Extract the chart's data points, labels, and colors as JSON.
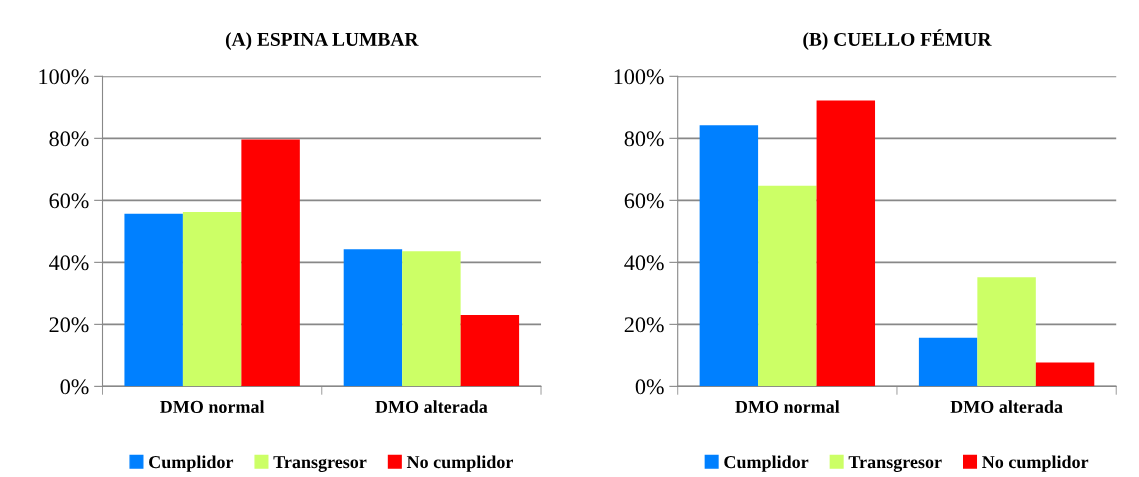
{
  "chart_data": [
    {
      "type": "bar",
      "title": "(A) ESPINA LUMBAR",
      "categories": [
        "DMO normal",
        "DMO alterada"
      ],
      "series": [
        {
          "name": "Cumplidor",
          "color": "#0080ff",
          "values": [
            55.7,
            44.2
          ]
        },
        {
          "name": "Transgresor",
          "color": "#ccff66",
          "values": [
            56.2,
            43.6
          ]
        },
        {
          "name": "No cumplidor",
          "color": "#ff0000",
          "values": [
            79.6,
            23.0
          ]
        }
      ],
      "ylim": [
        0,
        100
      ],
      "yticks": [
        {
          "value": 0,
          "label": "0%"
        },
        {
          "value": 20,
          "label": "20%"
        },
        {
          "value": 40,
          "label": "40%"
        },
        {
          "value": 60,
          "label": "60%"
        },
        {
          "value": 80,
          "label": "80%"
        },
        {
          "value": 100,
          "label": "100%"
        }
      ],
      "grid": "y",
      "legend": "bottom"
    },
    {
      "type": "bar",
      "title": "(B) CUELLO FÉMUR",
      "categories": [
        "DMO normal",
        "DMO alterada"
      ],
      "series": [
        {
          "name": "Cumplidor",
          "color": "#0080ff",
          "values": [
            84.2,
            15.7
          ]
        },
        {
          "name": "Transgresor",
          "color": "#ccff66",
          "values": [
            64.7,
            35.2
          ]
        },
        {
          "name": "No cumplidor",
          "color": "#ff0000",
          "values": [
            92.2,
            7.7
          ]
        }
      ],
      "ylim": [
        0,
        100
      ],
      "yticks": [
        {
          "value": 0,
          "label": "0%"
        },
        {
          "value": 20,
          "label": "20%"
        },
        {
          "value": 40,
          "label": "40%"
        },
        {
          "value": 60,
          "label": "60%"
        },
        {
          "value": 80,
          "label": "80%"
        },
        {
          "value": 100,
          "label": "100%"
        }
      ],
      "grid": "y",
      "legend": "bottom"
    }
  ]
}
